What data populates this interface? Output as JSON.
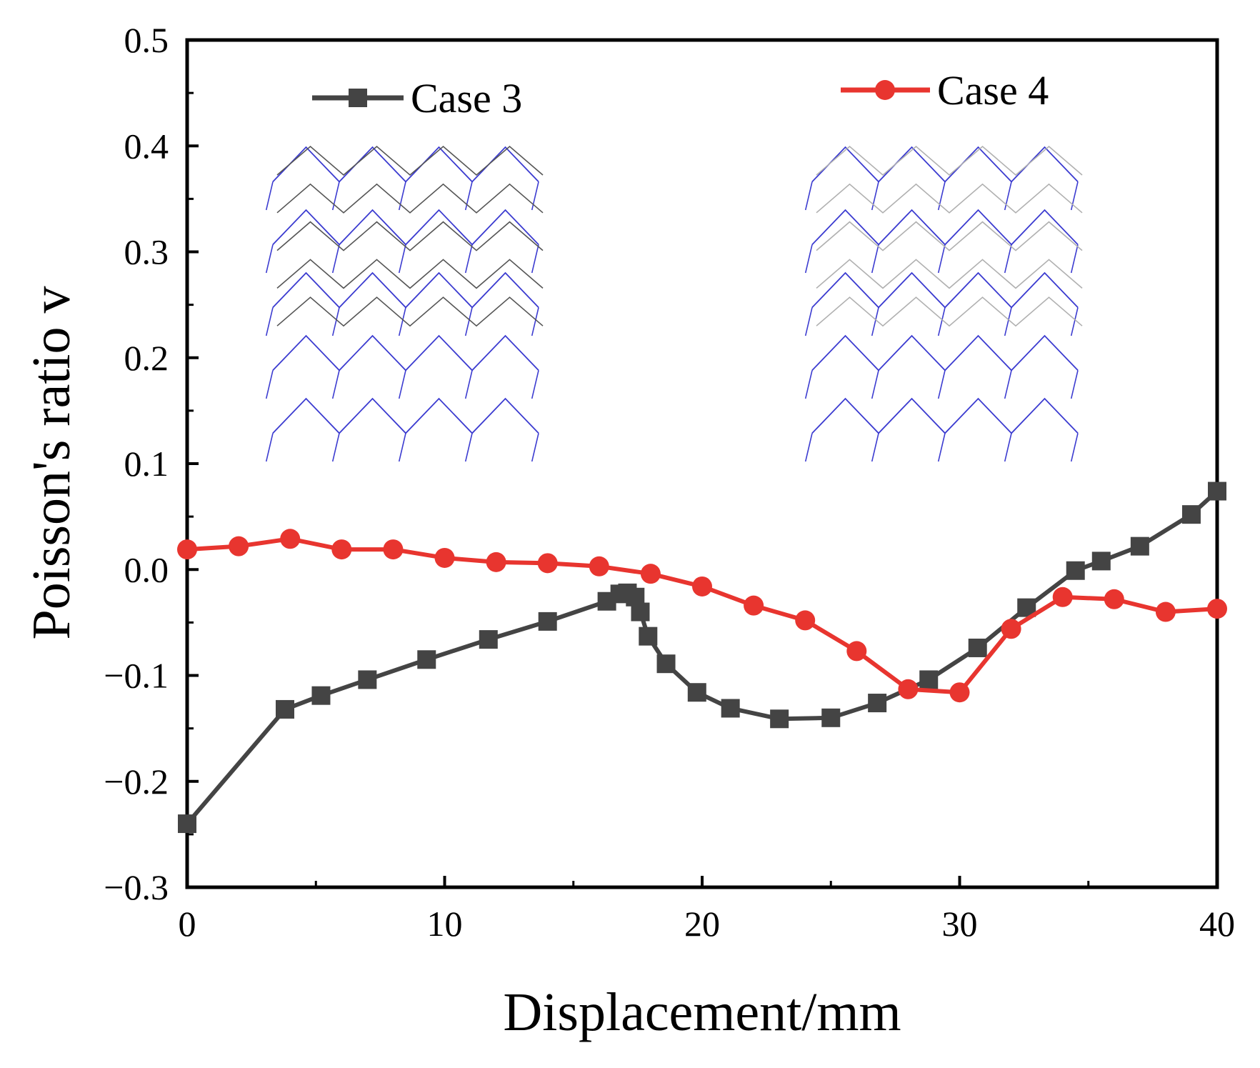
{
  "chart_data": {
    "type": "line",
    "title": "",
    "xlabel": "Displacement/mm",
    "ylabel": "Poisson's ratio v",
    "xlim": [
      0,
      40
    ],
    "ylim": [
      -0.3,
      0.5
    ],
    "xticks": [
      0,
      10,
      20,
      30,
      40
    ],
    "xtick_labels": [
      "0",
      "10",
      "20",
      "30",
      "40"
    ],
    "yticks": [
      -0.3,
      -0.2,
      -0.1,
      0.0,
      0.1,
      0.2,
      0.3,
      0.4,
      0.5
    ],
    "ytick_labels": [
      "−0.3",
      "−0.2",
      "−0.1",
      "0.0",
      "0.1",
      "0.2",
      "0.3",
      "0.4",
      "0.5"
    ],
    "grid": false,
    "legend_position": "top",
    "series": [
      {
        "name": "Case 3",
        "color": "#444444",
        "marker": "square",
        "x": [
          0,
          3.8,
          5.2,
          7.0,
          9.3,
          11.7,
          14.0,
          16.3,
          16.8,
          17.1,
          17.4,
          17.6,
          17.9,
          18.6,
          19.8,
          21.1,
          23.0,
          25.0,
          26.8,
          28.8,
          30.7,
          32.6,
          34.5,
          35.5,
          37.0,
          39.0,
          40.0
        ],
        "y": [
          -0.24,
          -0.132,
          -0.119,
          -0.104,
          -0.085,
          -0.066,
          -0.049,
          -0.03,
          -0.023,
          -0.022,
          -0.026,
          -0.04,
          -0.063,
          -0.089,
          -0.116,
          -0.131,
          -0.141,
          -0.14,
          -0.126,
          -0.104,
          -0.074,
          -0.036,
          -0.001,
          0.008,
          0.022,
          0.052,
          0.074
        ]
      },
      {
        "name": "Case 4",
        "color": "#e8352f",
        "marker": "circle",
        "x": [
          0,
          2,
          4,
          6,
          8,
          10,
          12,
          14,
          16,
          18,
          20,
          22,
          24,
          26,
          28,
          30,
          32,
          34,
          36,
          38,
          40
        ],
        "y": [
          0.019,
          0.022,
          0.029,
          0.019,
          0.019,
          0.011,
          0.007,
          0.006,
          0.003,
          -0.004,
          -0.016,
          -0.034,
          -0.048,
          -0.077,
          -0.113,
          -0.116,
          -0.056,
          -0.026,
          -0.028,
          -0.04,
          -0.037
        ]
      }
    ]
  }
}
